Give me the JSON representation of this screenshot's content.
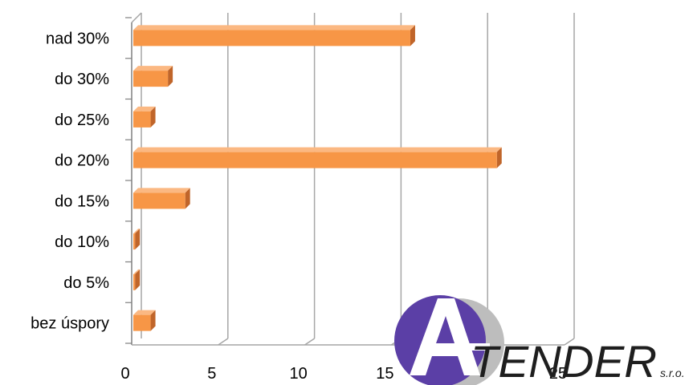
{
  "chart_data": {
    "type": "bar",
    "orientation": "horizontal",
    "style": "3d",
    "categories": [
      "nad 30%",
      "do 30%",
      "do 25%",
      "do 20%",
      "do 15%",
      "do 10%",
      "do 5%",
      "bez úspory"
    ],
    "values": [
      16,
      2,
      1,
      21,
      3,
      0.1,
      0.1,
      1
    ],
    "xlim": [
      0,
      25
    ],
    "xticks": [
      "0",
      "5",
      "10",
      "15",
      "20",
      "25"
    ],
    "grid": true,
    "legend": "none",
    "title": "",
    "xlabel": "",
    "ylabel": "",
    "colors": {
      "bar_front": "#f79646",
      "bar_top": "#fbb882",
      "bar_side": "#c0652a",
      "grid": "#a6a6a6",
      "axis": "#808080"
    }
  },
  "logo": {
    "main_text": "TENDER",
    "suffix": "s.r.o.",
    "letter": "A",
    "colors": {
      "circle_purple": "#5b3fa6",
      "circle_gray": "#bdbdbd",
      "text": "#1e1e1e"
    }
  }
}
